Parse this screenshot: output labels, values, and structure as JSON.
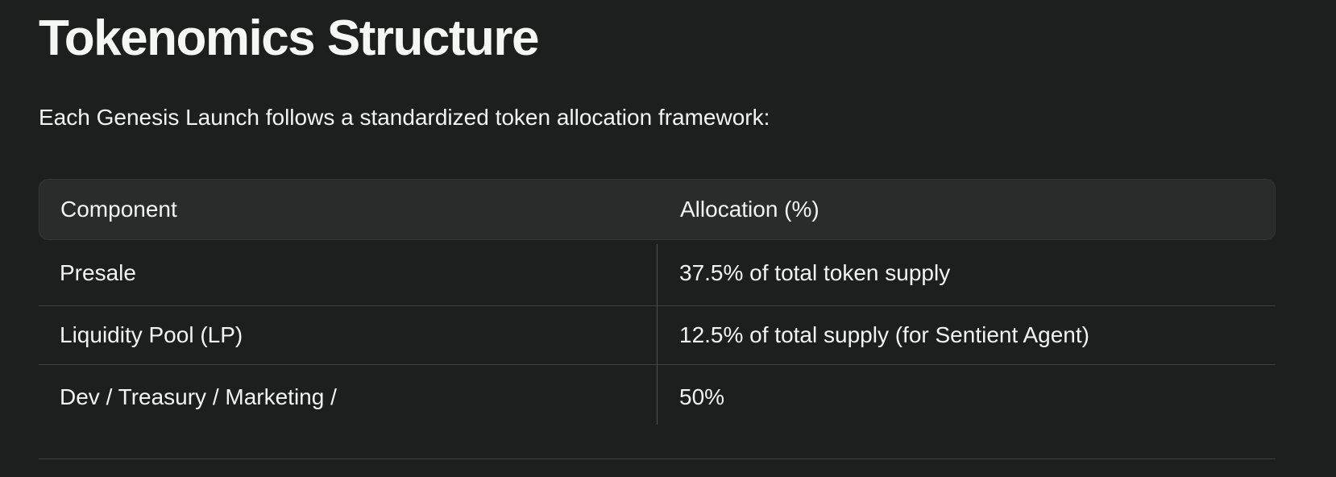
{
  "page": {
    "title": "Tokenomics Structure",
    "intro": "Each Genesis Launch follows a standardized token allocation framework:"
  },
  "table": {
    "columns": [
      "Component",
      "Allocation (%)"
    ],
    "rows": [
      {
        "component": "Presale",
        "allocation": "37.5% of total token supply"
      },
      {
        "component": "Liquidity Pool (LP)",
        "allocation": "12.5% of total supply (for Sentient Agent)"
      },
      {
        "component": "Dev / Treasury / Marketing /",
        "allocation": "50%"
      }
    ]
  },
  "colors": {
    "bg": "#1d1e1e",
    "surface": "#2a2b2b",
    "surface-border": "#343636",
    "border-h": "#3e4040",
    "border-v": "#4d4f4f",
    "text": "#f1f4f2",
    "title": "#f4f8f5"
  }
}
